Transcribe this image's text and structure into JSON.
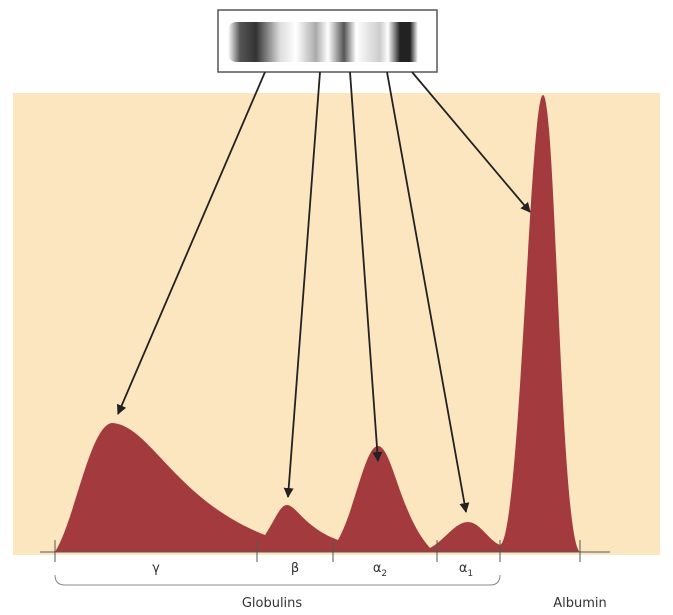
{
  "fractions": [
    {
      "symbol": "γ"
    },
    {
      "symbol": "β"
    },
    {
      "symbol": "α",
      "subscript": "2"
    },
    {
      "symbol": "α",
      "subscript": "1"
    }
  ],
  "group_label": "Globulins",
  "albumin_label": "Albumin"
}
